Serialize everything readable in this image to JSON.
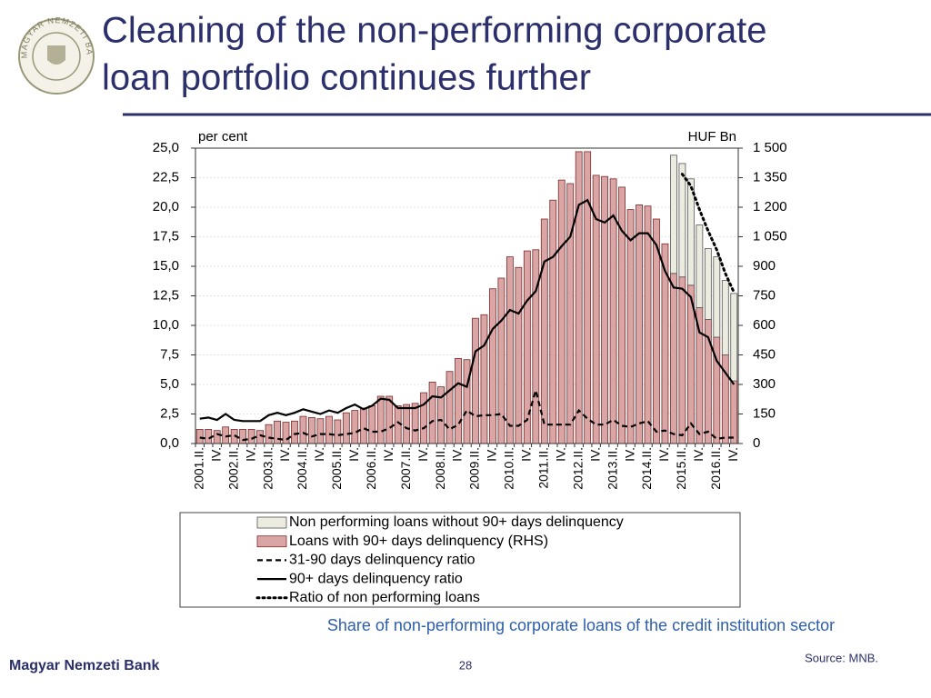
{
  "slide": {
    "logo_text": "MAGYAR NEMZETI BANK",
    "title_lines": [
      "Cleaning of the non-performing corporate",
      "loan portfolio continues further"
    ],
    "caption": "Share of non-performing corporate loans of the credit institution sector",
    "source": "Source: MNB.",
    "footer": "Magyar Nemzeti Bank",
    "page_number": "28"
  },
  "chart_data": {
    "type": "combo",
    "stacked": true,
    "grid": true,
    "ylabel": "per cent",
    "y2label": "HUF Bn",
    "ylim": [
      0,
      25
    ],
    "yticks": [
      {
        "value": 0,
        "label": "0,0"
      },
      {
        "value": 2.5,
        "label": "2,5"
      },
      {
        "value": 5,
        "label": "5,0"
      },
      {
        "value": 7.5,
        "label": "7,5"
      },
      {
        "value": 10,
        "label": "10,0"
      },
      {
        "value": 12.5,
        "label": "12,5"
      },
      {
        "value": 15,
        "label": "15,0"
      },
      {
        "value": 17.5,
        "label": "17,5"
      },
      {
        "value": 20,
        "label": "20,0"
      },
      {
        "value": 22.5,
        "label": "22,5"
      },
      {
        "value": 25,
        "label": "25,0"
      }
    ],
    "y2lim": [
      0,
      1500
    ],
    "y2ticks": [
      0,
      150,
      300,
      450,
      600,
      750,
      900,
      {
        "value": 1050,
        "label": "1 050"
      },
      {
        "value": 1200,
        "label": "1 200"
      },
      {
        "value": 1350,
        "label": "1 350"
      },
      {
        "value": 1500,
        "label": "1 500"
      }
    ],
    "categories": [
      "2001.II.",
      null,
      "IV.",
      null,
      "2002.II.",
      null,
      "IV.",
      null,
      "2003.II.",
      null,
      "IV.",
      null,
      "2004.II.",
      null,
      "IV.",
      null,
      "2005.II.",
      null,
      "IV.",
      null,
      "2006.II.",
      null,
      "IV.",
      null,
      "2007.II.",
      null,
      "IV.",
      null,
      "2008.II.",
      null,
      "IV.",
      null,
      "2009.II.",
      null,
      "IV.",
      null,
      "2010.II.",
      null,
      "IV.",
      null,
      "2011.II.",
      null,
      "IV.",
      null,
      "2012.II.",
      null,
      "IV.",
      null,
      "2013.II.",
      null,
      "IV.",
      null,
      "2014.II.",
      null,
      "IV.",
      null,
      "2015.II.",
      null,
      "IV.",
      null,
      "2016.II.",
      null,
      "IV."
    ],
    "series": [
      {
        "name": "Non performing loans without 90+ days delinquency",
        "type": "bar",
        "axis": "y2",
        "color": "#ebebdf",
        "stroke": "#555555",
        "values": [
          null,
          null,
          null,
          null,
          null,
          null,
          null,
          null,
          null,
          null,
          null,
          null,
          null,
          null,
          null,
          null,
          null,
          null,
          null,
          null,
          null,
          null,
          null,
          null,
          null,
          null,
          null,
          null,
          null,
          null,
          null,
          null,
          null,
          null,
          null,
          null,
          null,
          null,
          null,
          null,
          null,
          null,
          null,
          null,
          null,
          null,
          null,
          null,
          null,
          null,
          null,
          null,
          null,
          null,
          null,
          600,
          576,
          540,
          420,
          360,
          408,
          378,
          444
        ]
      },
      {
        "name": "Loans with 90+ days delinquency (RHS)",
        "type": "bar",
        "axis": "y2",
        "color": "#d9a5a5",
        "stroke": "#7a2a2a",
        "values": [
          72,
          72,
          66,
          84,
          72,
          72,
          72,
          66,
          96,
          114,
          108,
          114,
          138,
          132,
          126,
          138,
          120,
          156,
          168,
          180,
          192,
          240,
          240,
          192,
          198,
          204,
          258,
          312,
          288,
          366,
          432,
          426,
          636,
          654,
          786,
          840,
          948,
          894,
          978,
          984,
          1140,
          1236,
          1338,
          1320,
          1482,
          1482,
          1362,
          1356,
          1344,
          1302,
          1188,
          1212,
          1206,
          1140,
          1014,
          864,
          846,
          804,
          690,
          630,
          540,
          450,
          318
        ]
      },
      {
        "name": "31-90 days delinquency ratio",
        "type": "line",
        "dash": "dashed",
        "color": "#000000",
        "values": [
          0.5,
          0.4,
          0.8,
          0.6,
          0.7,
          0.3,
          0.4,
          0.7,
          0.5,
          0.4,
          0.3,
          0.8,
          0.9,
          0.6,
          0.8,
          0.8,
          0.7,
          0.8,
          0.9,
          1.3,
          1.0,
          1.0,
          1.3,
          1.8,
          1.3,
          1.1,
          1.3,
          1.9,
          2.0,
          1.2,
          1.6,
          2.8,
          2.3,
          2.4,
          2.4,
          2.5,
          1.5,
          1.5,
          2.0,
          4.5,
          1.6,
          1.6,
          1.6,
          1.6,
          2.8,
          2.1,
          1.6,
          1.6,
          2.0,
          1.5,
          1.4,
          1.7,
          1.9,
          1.0,
          1.1,
          0.8,
          0.7,
          1.7,
          0.8,
          1.0,
          0.4,
          0.5,
          0.5
        ]
      },
      {
        "name": "90+ days delinquency ratio",
        "type": "line",
        "dash": "solid",
        "color": "#000000",
        "values": [
          2.1,
          2.2,
          2.0,
          2.5,
          2.0,
          1.9,
          1.9,
          1.9,
          2.4,
          2.6,
          2.4,
          2.6,
          2.9,
          2.7,
          2.5,
          2.8,
          2.6,
          3.0,
          3.3,
          2.9,
          3.2,
          3.8,
          3.7,
          3.0,
          3.0,
          3.0,
          3.3,
          4.0,
          3.9,
          4.5,
          5.1,
          4.8,
          7.8,
          8.3,
          9.7,
          10.4,
          11.3,
          11.0,
          12.1,
          12.9,
          15.4,
          15.8,
          16.7,
          17.5,
          20.2,
          20.6,
          19.0,
          18.7,
          19.3,
          18.0,
          17.2,
          17.8,
          17.8,
          16.8,
          14.6,
          13.2,
          13.1,
          12.4,
          9.4,
          9.0,
          7.0,
          6.0,
          5.0
        ]
      },
      {
        "name": "Ratio of non performing loans",
        "type": "line",
        "dash": "dotted",
        "color": "#000000",
        "values": [
          null,
          null,
          null,
          null,
          null,
          null,
          null,
          null,
          null,
          null,
          null,
          null,
          null,
          null,
          null,
          null,
          null,
          null,
          null,
          null,
          null,
          null,
          null,
          null,
          null,
          null,
          null,
          null,
          null,
          null,
          null,
          null,
          null,
          null,
          null,
          null,
          null,
          null,
          null,
          null,
          null,
          null,
          null,
          null,
          null,
          null,
          null,
          null,
          null,
          null,
          null,
          null,
          null,
          null,
          null,
          null,
          22.8,
          21.8,
          19.8,
          18.0,
          16.4,
          14.4,
          12.8
        ]
      }
    ]
  }
}
